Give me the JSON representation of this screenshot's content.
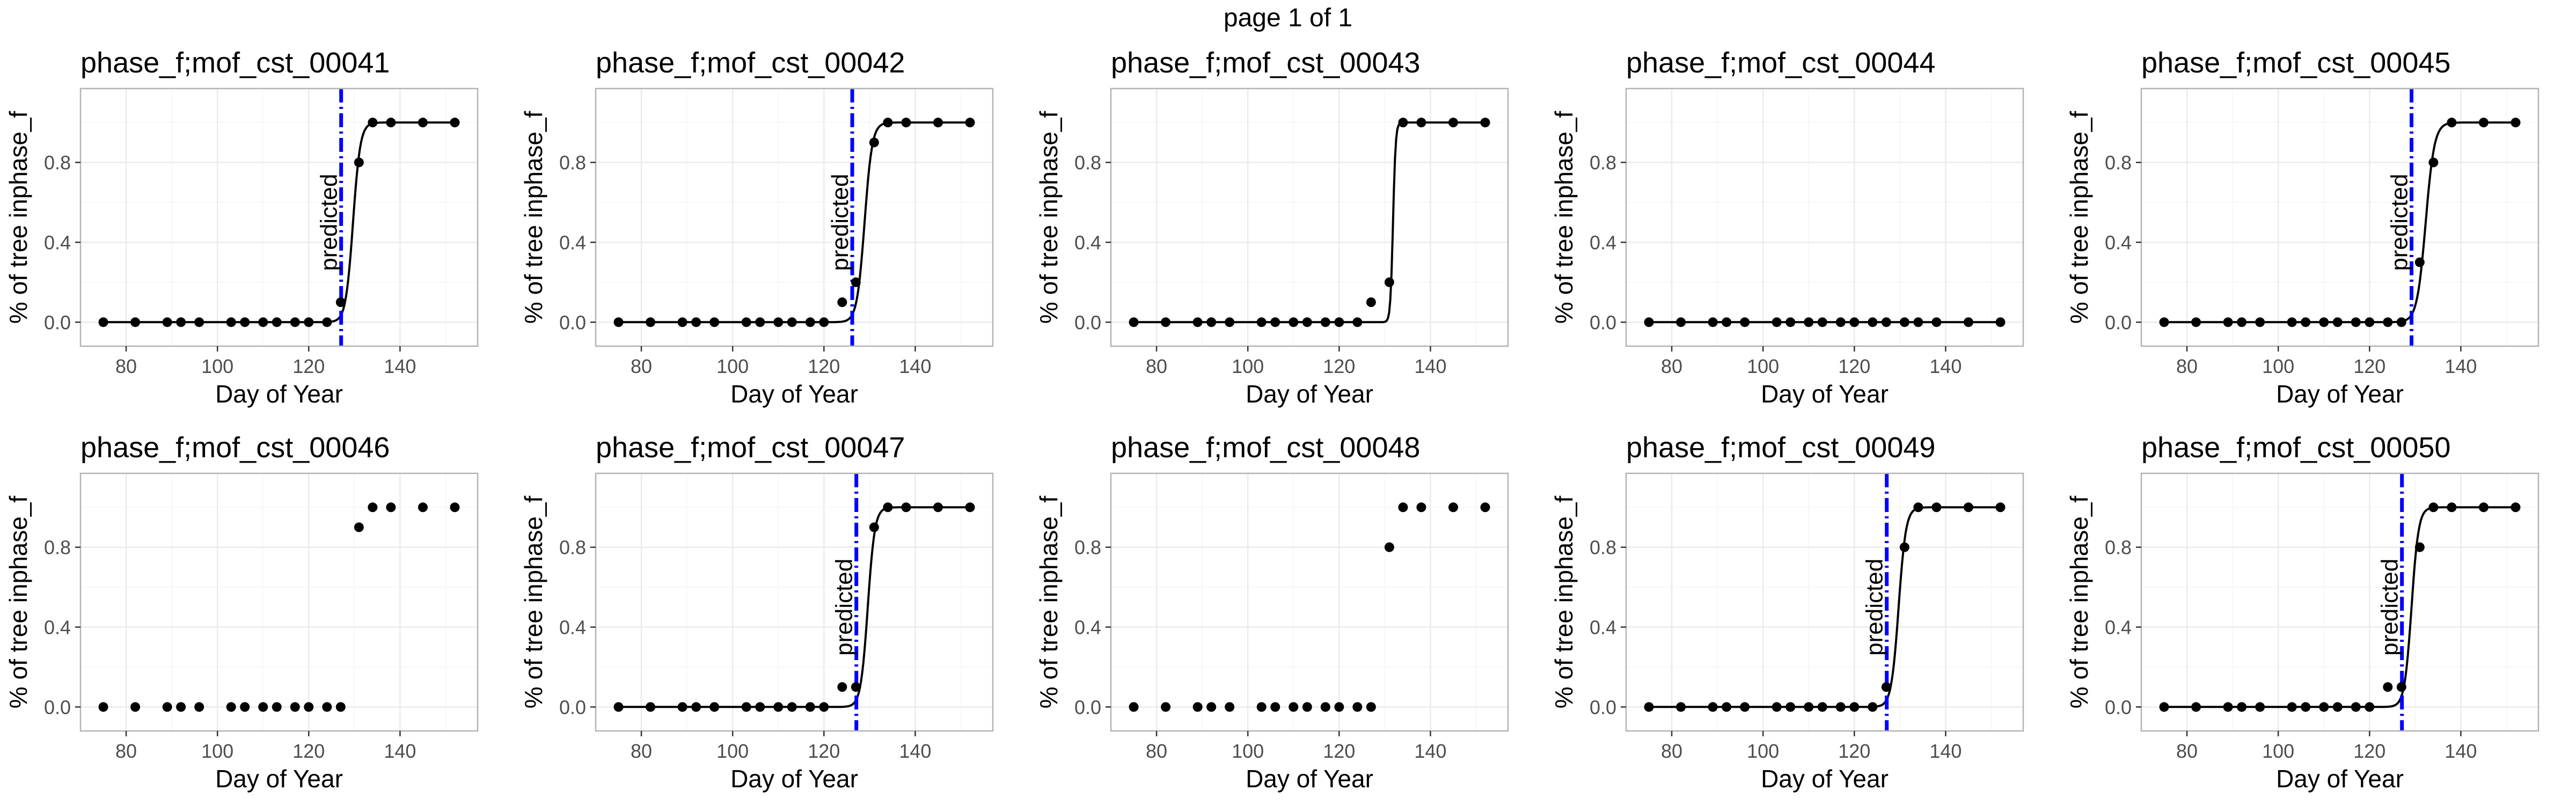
{
  "page_title": "page 1 of 1",
  "chart_data": [
    {
      "type": "scatter",
      "title": "phase_f;mof_cst_00041",
      "xlabel": "Day of Year",
      "ylabel": "% of tree inphase_f",
      "xlim": [
        70,
        157
      ],
      "ylim": [
        -0.12,
        1.17
      ],
      "xticks": [
        80,
        100,
        120,
        140
      ],
      "yticks": [
        0,
        0.4,
        0.8
      ],
      "ytick_labels": [
        "0.0",
        "0.4",
        "0.8"
      ],
      "grid": true,
      "x": [
        75,
        82,
        89,
        92,
        96,
        103,
        106,
        110,
        113,
        117,
        120,
        124,
        127,
        131,
        134,
        138,
        145,
        152
      ],
      "y": [
        0,
        0,
        0,
        0,
        0,
        0,
        0,
        0,
        0,
        0,
        0,
        0,
        0.1,
        0.8,
        1,
        1,
        1,
        1
      ],
      "fit": {
        "midpoint": 129.7,
        "slope": 1.25
      },
      "predicted_day": 127.1,
      "predicted_label": "predicted"
    },
    {
      "type": "scatter",
      "title": "phase_f;mof_cst_00042",
      "xlabel": "Day of Year",
      "ylabel": "% of tree inphase_f",
      "xlim": [
        70,
        157
      ],
      "ylim": [
        -0.12,
        1.17
      ],
      "xticks": [
        80,
        100,
        120,
        140
      ],
      "yticks": [
        0,
        0.4,
        0.8
      ],
      "ytick_labels": [
        "0.0",
        "0.4",
        "0.8"
      ],
      "grid": true,
      "x": [
        75,
        82,
        89,
        92,
        96,
        103,
        106,
        110,
        113,
        117,
        120,
        124,
        127,
        131,
        134,
        138,
        145,
        152
      ],
      "y": [
        0,
        0,
        0,
        0,
        0,
        0,
        0,
        0,
        0,
        0,
        0,
        0.1,
        0.2,
        0.9,
        1,
        1,
        1,
        1
      ],
      "fit": {
        "midpoint": 128.9,
        "slope": 1.2
      },
      "predicted_day": 126.2,
      "predicted_label": "predicted"
    },
    {
      "type": "scatter",
      "title": "phase_f;mof_cst_00043",
      "xlabel": "Day of Year",
      "ylabel": "% of tree inphase_f",
      "xlim": [
        70,
        157
      ],
      "ylim": [
        -0.12,
        1.17
      ],
      "xticks": [
        80,
        100,
        120,
        140
      ],
      "yticks": [
        0,
        0.4,
        0.8
      ],
      "ytick_labels": [
        "0.0",
        "0.4",
        "0.8"
      ],
      "grid": true,
      "x": [
        75,
        82,
        89,
        92,
        96,
        103,
        106,
        110,
        113,
        117,
        120,
        124,
        127,
        131,
        134,
        138,
        145,
        152
      ],
      "y": [
        0,
        0,
        0,
        0,
        0,
        0,
        0,
        0,
        0,
        0,
        0,
        0,
        0.1,
        0.2,
        1,
        1,
        1,
        1
      ],
      "fit": {
        "midpoint": 131.8,
        "slope": 3.5
      }
    },
    {
      "type": "scatter",
      "title": "phase_f;mof_cst_00044",
      "xlabel": "Day of Year",
      "ylabel": "% of tree inphase_f",
      "xlim": [
        70,
        157
      ],
      "ylim": [
        -0.12,
        1.17
      ],
      "xticks": [
        80,
        100,
        120,
        140
      ],
      "yticks": [
        0,
        0.4,
        0.8
      ],
      "ytick_labels": [
        "0.0",
        "0.4",
        "0.8"
      ],
      "grid": true,
      "x": [
        75,
        82,
        89,
        92,
        96,
        103,
        106,
        110,
        113,
        117,
        120,
        124,
        127,
        131,
        134,
        138,
        145,
        152
      ],
      "y": [
        0,
        0,
        0,
        0,
        0,
        0,
        0,
        0,
        0,
        0,
        0,
        0,
        0,
        0,
        0,
        0,
        0,
        0
      ],
      "fit": {
        "flat": 0
      }
    },
    {
      "type": "scatter",
      "title": "phase_f;mof_cst_00045",
      "xlabel": "Day of Year",
      "ylabel": "% of tree inphase_f",
      "xlim": [
        70,
        157
      ],
      "ylim": [
        -0.12,
        1.17
      ],
      "xticks": [
        80,
        100,
        120,
        140
      ],
      "yticks": [
        0,
        0.4,
        0.8
      ],
      "ytick_labels": [
        "0.0",
        "0.4",
        "0.8"
      ],
      "grid": true,
      "x": [
        75,
        82,
        89,
        92,
        96,
        103,
        106,
        110,
        113,
        117,
        120,
        124,
        127,
        131,
        134,
        138,
        145,
        152
      ],
      "y": [
        0,
        0,
        0,
        0,
        0,
        0,
        0,
        0,
        0,
        0,
        0,
        0,
        0,
        0.3,
        0.8,
        1,
        1,
        1
      ],
      "fit": {
        "midpoint": 132.3,
        "slope": 1.05
      },
      "predicted_day": 129.2,
      "predicted_label": "predicted"
    },
    {
      "type": "scatter",
      "title": "phase_f;mof_cst_00046",
      "xlabel": "Day of Year",
      "ylabel": "% of tree inphase_f",
      "xlim": [
        70,
        157
      ],
      "ylim": [
        -0.12,
        1.17
      ],
      "xticks": [
        80,
        100,
        120,
        140
      ],
      "yticks": [
        0,
        0.4,
        0.8
      ],
      "ytick_labels": [
        "0.0",
        "0.4",
        "0.8"
      ],
      "grid": true,
      "x": [
        75,
        82,
        89,
        92,
        96,
        103,
        106,
        110,
        113,
        117,
        120,
        124,
        127,
        131,
        134,
        138,
        145,
        152
      ],
      "y": [
        0,
        0,
        0,
        0,
        0,
        0,
        0,
        0,
        0,
        0,
        0,
        0,
        0,
        0.9,
        1,
        1,
        1,
        1
      ]
    },
    {
      "type": "scatter",
      "title": "phase_f;mof_cst_00047",
      "xlabel": "Day of Year",
      "ylabel": "% of tree inphase_f",
      "xlim": [
        70,
        157
      ],
      "ylim": [
        -0.12,
        1.17
      ],
      "xticks": [
        80,
        100,
        120,
        140
      ],
      "yticks": [
        0,
        0.4,
        0.8
      ],
      "ytick_labels": [
        "0.0",
        "0.4",
        "0.8"
      ],
      "grid": true,
      "x": [
        75,
        82,
        89,
        92,
        96,
        103,
        106,
        110,
        113,
        117,
        120,
        124,
        127,
        131,
        134,
        138,
        145,
        152
      ],
      "y": [
        0,
        0,
        0,
        0,
        0,
        0,
        0,
        0,
        0,
        0,
        0,
        0.1,
        0.1,
        0.9,
        1,
        1,
        1,
        1
      ],
      "fit": {
        "midpoint": 129.6,
        "slope": 1.3
      },
      "predicted_day": 127.1,
      "predicted_label": "predicted"
    },
    {
      "type": "scatter",
      "title": "phase_f;mof_cst_00048",
      "xlabel": "Day of Year",
      "ylabel": "% of tree inphase_f",
      "xlim": [
        70,
        157
      ],
      "ylim": [
        -0.12,
        1.17
      ],
      "xticks": [
        80,
        100,
        120,
        140
      ],
      "yticks": [
        0,
        0.4,
        0.8
      ],
      "ytick_labels": [
        "0.0",
        "0.4",
        "0.8"
      ],
      "grid": true,
      "x": [
        75,
        82,
        89,
        92,
        96,
        103,
        106,
        110,
        113,
        117,
        120,
        124,
        127,
        131,
        134,
        138,
        145,
        152
      ],
      "y": [
        0,
        0,
        0,
        0,
        0,
        0,
        0,
        0,
        0,
        0,
        0,
        0,
        0,
        0.8,
        1,
        1,
        1,
        1
      ]
    },
    {
      "type": "scatter",
      "title": "phase_f;mof_cst_00049",
      "xlabel": "Day of Year",
      "ylabel": "% of tree inphase_f",
      "xlim": [
        70,
        157
      ],
      "ylim": [
        -0.12,
        1.17
      ],
      "xticks": [
        80,
        100,
        120,
        140
      ],
      "yticks": [
        0,
        0.4,
        0.8
      ],
      "ytick_labels": [
        "0.0",
        "0.4",
        "0.8"
      ],
      "grid": true,
      "x": [
        75,
        82,
        89,
        92,
        96,
        103,
        106,
        110,
        113,
        117,
        120,
        124,
        127,
        131,
        134,
        138,
        145,
        152
      ],
      "y": [
        0,
        0,
        0,
        0,
        0,
        0,
        0,
        0,
        0,
        0,
        0,
        0,
        0.1,
        0.8,
        1,
        1,
        1,
        1
      ],
      "fit": {
        "midpoint": 129.7,
        "slope": 1.25
      },
      "predicted_day": 127.1,
      "predicted_label": "predicted"
    },
    {
      "type": "scatter",
      "title": "phase_f;mof_cst_00050",
      "xlabel": "Day of Year",
      "ylabel": "% of tree inphase_f",
      "xlim": [
        70,
        157
      ],
      "ylim": [
        -0.12,
        1.17
      ],
      "xticks": [
        80,
        100,
        120,
        140
      ],
      "yticks": [
        0,
        0.4,
        0.8
      ],
      "ytick_labels": [
        "0.0",
        "0.4",
        "0.8"
      ],
      "grid": true,
      "x": [
        75,
        82,
        89,
        92,
        96,
        103,
        106,
        110,
        113,
        117,
        120,
        124,
        127,
        131,
        134,
        138,
        145,
        152
      ],
      "y": [
        0,
        0,
        0,
        0,
        0,
        0,
        0,
        0,
        0,
        0,
        0,
        0.1,
        0.1,
        0.8,
        1,
        1,
        1,
        1
      ],
      "fit": {
        "midpoint": 129.2,
        "slope": 1.3
      },
      "predicted_day": 127.1,
      "predicted_label": "predicted"
    }
  ],
  "colors": {
    "panel_border": "#b3b3b3",
    "grid_major": "#ebebeb",
    "grid_minor": "#f5f5f5",
    "tick_text": "#4d4d4d",
    "points": "#000000",
    "fit_line": "#000000",
    "predicted_line": "#0000ff"
  }
}
